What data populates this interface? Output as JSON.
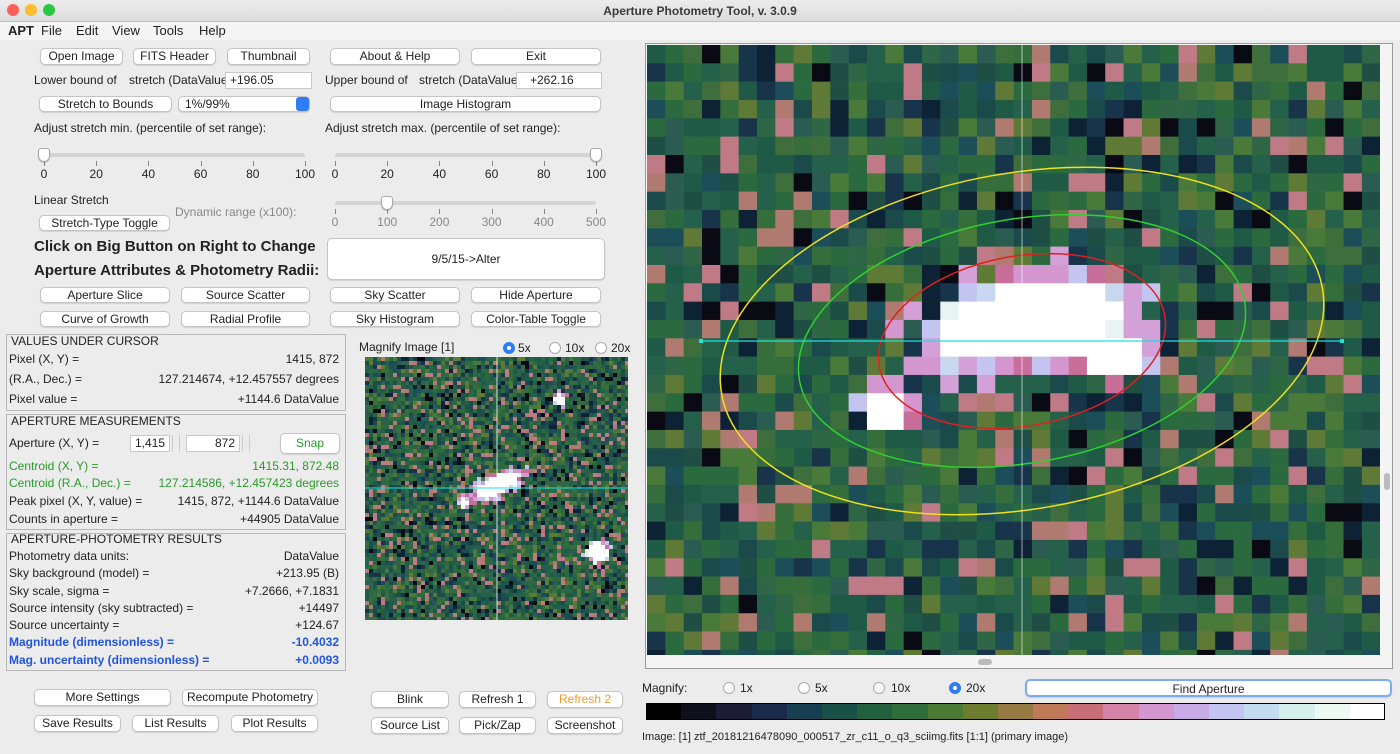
{
  "window_title": "Aperture Photometry Tool, v. 3.0.9",
  "menu": [
    "APT",
    "File",
    "Edit",
    "View",
    "Tools",
    "Help"
  ],
  "top_buttons": [
    "Open Image",
    "FITS Header",
    "Thumbnail",
    "About & Help",
    "Exit"
  ],
  "stretch": {
    "lower": {
      "label": "Lower bound of",
      "unit_label": "stretch (DataValue):",
      "value": "+196.05"
    },
    "upper": {
      "label": "Upper bound of",
      "unit_label": "stretch (DataValue):",
      "value": "+262.16"
    },
    "bounds_button": "Stretch to Bounds",
    "percentile_choice": "1%/99%",
    "histogram_button": "Image Histogram"
  },
  "sliders": {
    "min": {
      "label": "Adjust stretch min. (percentile of set range):",
      "ticks": [
        0,
        20,
        40,
        60,
        80,
        100
      ],
      "value": 0
    },
    "max": {
      "label": "Adjust stretch max. (percentile of set range):",
      "ticks": [
        0,
        20,
        40,
        60,
        80,
        100
      ],
      "value": 100
    },
    "dynamic": {
      "label": "Dynamic range (x100):",
      "ticks": [
        0,
        100,
        200,
        300,
        400,
        500
      ],
      "value": 100
    }
  },
  "stretch_type": {
    "label": "Linear Stretch",
    "button": "Stretch-Type Toggle"
  },
  "instructions": [
    "Click on Big Button on Right to Change",
    "Aperture Attributes & Photometry Radii:"
  ],
  "alter_button": "9/5/15->Alter",
  "tool_buttons": [
    "Aperture Slice",
    "Source Scatter",
    "Sky Scatter",
    "Hide Aperture",
    "Curve of Growth",
    "Radial Profile",
    "Sky Histogram",
    "Color-Table Toggle"
  ],
  "cursor_values": {
    "title": "VALUES UNDER CURSOR",
    "rows": [
      {
        "label": "Pixel (X, Y) =",
        "value": "1415, 872"
      },
      {
        "label": "(R.A., Dec.) =",
        "value": "127.214674, +12.457557 degrees"
      },
      {
        "label": "Pixel value =",
        "value": "+1144.6 DataValue"
      }
    ]
  },
  "aperture": {
    "title": "APERTURE MEASUREMENTS",
    "position_label": "Aperture (X, Y) =",
    "x": "1,415",
    "y": "872",
    "snap": "Snap",
    "rows": [
      {
        "label": "Centroid (X, Y) =",
        "value": "1415.31, 872.48"
      },
      {
        "label": "Centroid (R.A., Dec.) =",
        "value": "127.214586, +12.457423 degrees"
      },
      {
        "label": "Peak pixel (X, Y, value) =",
        "value": "1415, 872, +1144.6 DataValue"
      },
      {
        "label": "Counts in aperture =",
        "value": "+44905 DataValue"
      }
    ]
  },
  "results": {
    "title": "APERTURE-PHOTOMETRY RESULTS",
    "rows": [
      {
        "label": "Photometry data units:",
        "value": "DataValue"
      },
      {
        "label": "Sky background (model) =",
        "value": "+213.95 (B)"
      },
      {
        "label": "Sky scale, sigma =",
        "value": "+7.2666, +7.1831"
      },
      {
        "label": "Source intensity (sky subtracted)  =",
        "value": "+14497"
      },
      {
        "label": "Source uncertainty =",
        "value": "+124.67"
      },
      {
        "label": "Magnitude (dimensionless) =",
        "value": "-10.4032"
      },
      {
        "label": "Mag. uncertainty (dimensionless) =",
        "value": "+0.0093"
      }
    ]
  },
  "magnify_panel": {
    "title": "Magnify Image [1]",
    "options": [
      "5x",
      "10x",
      "20x"
    ],
    "selected": 0
  },
  "bottom_buttons": {
    "left": [
      "More Settings",
      "Recompute Photometry",
      "Save Results",
      "List Results",
      "Plot Results"
    ],
    "middle": [
      "Blink",
      "Refresh 1",
      "Refresh 2",
      "Source List",
      "Pick/Zap",
      "Screenshot"
    ]
  },
  "main_magnify": {
    "label": "Magnify:",
    "options": [
      "1x",
      "5x",
      "10x",
      "20x"
    ],
    "selected": 3,
    "find_button": "Find Aperture"
  },
  "status": "Image: [1]  ztf_20181216478090_000517_zr_c11_o_q3_sciimg.fits [1:1] (primary image)"
}
